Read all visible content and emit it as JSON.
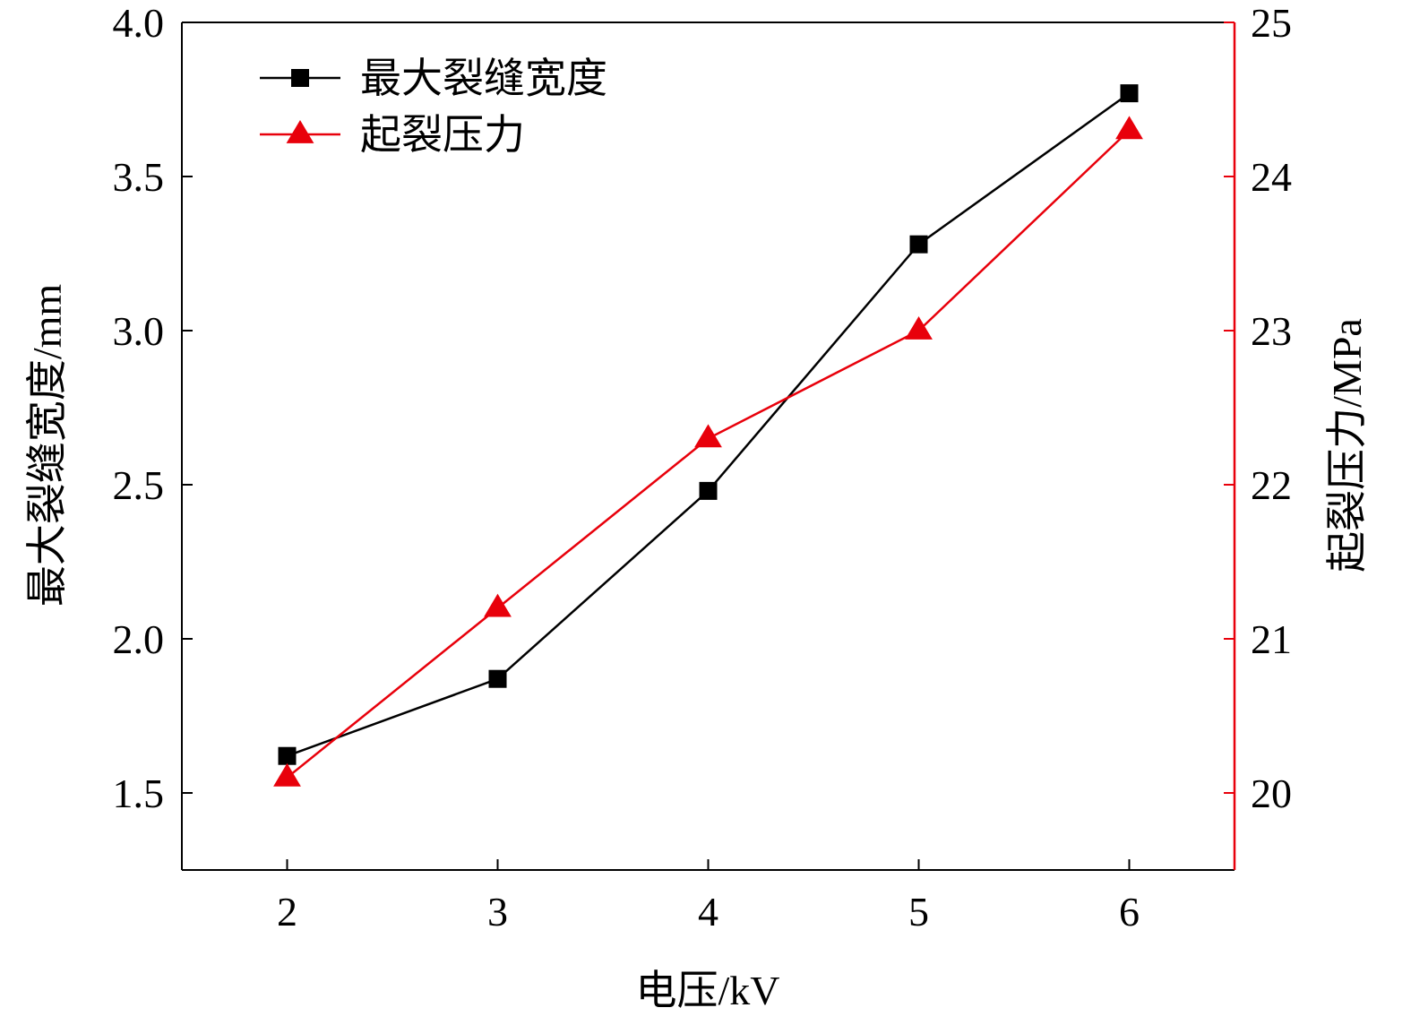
{
  "chart_data": {
    "type": "line",
    "x": [
      2,
      3,
      4,
      5,
      6
    ],
    "xlabel": "电压/kV",
    "xlim": [
      1.5,
      6.5
    ],
    "xticks": [
      "2",
      "3",
      "4",
      "5",
      "6"
    ],
    "series": [
      {
        "name": "最大裂缝宽度",
        "axis": "left",
        "values": [
          1.62,
          1.87,
          2.48,
          3.28,
          3.77
        ],
        "marker": "square",
        "color": "#000000"
      },
      {
        "name": "起裂压力",
        "axis": "right",
        "values": [
          20.1,
          21.2,
          22.3,
          23.0,
          24.3
        ],
        "marker": "triangle",
        "color": "#e8000b"
      }
    ],
    "ylabel_left": "最大裂缝宽度/mm",
    "ylim_left": [
      1.25,
      4.0
    ],
    "yticks_left": [
      "1.5",
      "2.0",
      "2.5",
      "3.0",
      "3.5",
      "4.0"
    ],
    "ylabel_right": "起裂压力/MPa",
    "ylim_right": [
      19.5,
      25
    ],
    "yticks_right": [
      "20",
      "21",
      "22",
      "23",
      "24",
      "25"
    ],
    "legend_position": "top-left",
    "grid": false
  }
}
